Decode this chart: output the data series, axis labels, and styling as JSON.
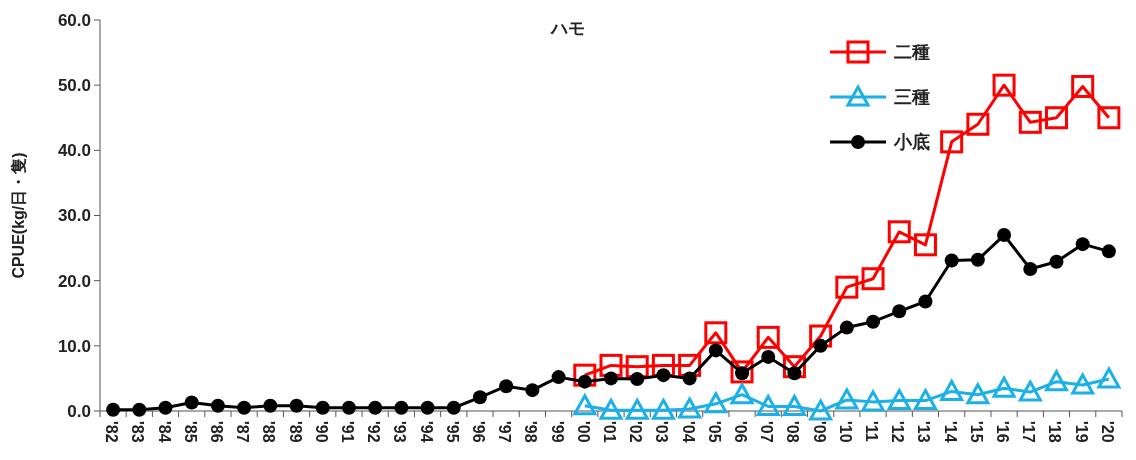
{
  "chart_data": {
    "type": "line",
    "title": "ハモ",
    "ylabel": "CPUE(kg/日・隻)",
    "categories": [
      "'82",
      "'83",
      "'84",
      "'85",
      "'86",
      "'87",
      "'88",
      "'89",
      "'90",
      "'91",
      "'92",
      "'93",
      "'94",
      "'95",
      "'96",
      "'97",
      "'98",
      "'99",
      "'00",
      "'01",
      "'02",
      "'03",
      "'04",
      "'05",
      "'06",
      "'07",
      "'08",
      "'09",
      "'10",
      "'11",
      "'12",
      "'13",
      "'14",
      "'15",
      "'16",
      "'17",
      "'18",
      "'19",
      "'20"
    ],
    "series": [
      {
        "name": "二種",
        "color": "#ff0000",
        "marker": "square",
        "values": [
          null,
          null,
          null,
          null,
          null,
          null,
          null,
          null,
          null,
          null,
          null,
          null,
          null,
          null,
          null,
          null,
          null,
          null,
          5.5,
          7.0,
          6.8,
          7.0,
          7.0,
          12.0,
          6.0,
          11.3,
          6.8,
          11.5,
          19.0,
          20.3,
          27.5,
          25.5,
          41.3,
          44.0,
          50.0,
          44.3,
          45.0,
          49.8,
          45.0
        ]
      },
      {
        "name": "三種",
        "color": "#1cb0e8",
        "marker": "triangle",
        "values": [
          null,
          null,
          null,
          null,
          null,
          null,
          null,
          null,
          null,
          null,
          null,
          null,
          null,
          null,
          null,
          null,
          null,
          null,
          0.8,
          0.1,
          0.1,
          0.1,
          0.3,
          1.1,
          2.5,
          0.7,
          0.7,
          0.0,
          1.7,
          1.4,
          1.6,
          1.6,
          3.0,
          2.5,
          3.5,
          2.9,
          4.5,
          4.0,
          4.9
        ]
      },
      {
        "name": "小底",
        "color": "#000000",
        "marker": "circle",
        "values": [
          0.2,
          0.2,
          0.5,
          1.3,
          0.8,
          0.5,
          0.8,
          0.8,
          0.5,
          0.5,
          0.5,
          0.5,
          0.5,
          0.5,
          2.1,
          3.8,
          3.2,
          5.2,
          4.5,
          5.0,
          4.9,
          5.5,
          5.0,
          9.3,
          5.8,
          8.3,
          5.8,
          10.0,
          12.8,
          13.7,
          15.3,
          16.8,
          23.1,
          23.2,
          27.0,
          21.8,
          22.9,
          25.6,
          24.5
        ]
      }
    ],
    "ylim": [
      0,
      60
    ],
    "yticks": [
      {
        "value": 0,
        "label": "0.0"
      },
      {
        "value": 10,
        "label": "10.0"
      },
      {
        "value": 20,
        "label": "20.0"
      },
      {
        "value": 30,
        "label": "30.0"
      },
      {
        "value": 40,
        "label": "40.0"
      },
      {
        "value": 50,
        "label": "50.0"
      },
      {
        "value": 60,
        "label": "60.0"
      }
    ],
    "legend": "top right",
    "grid": false
  }
}
